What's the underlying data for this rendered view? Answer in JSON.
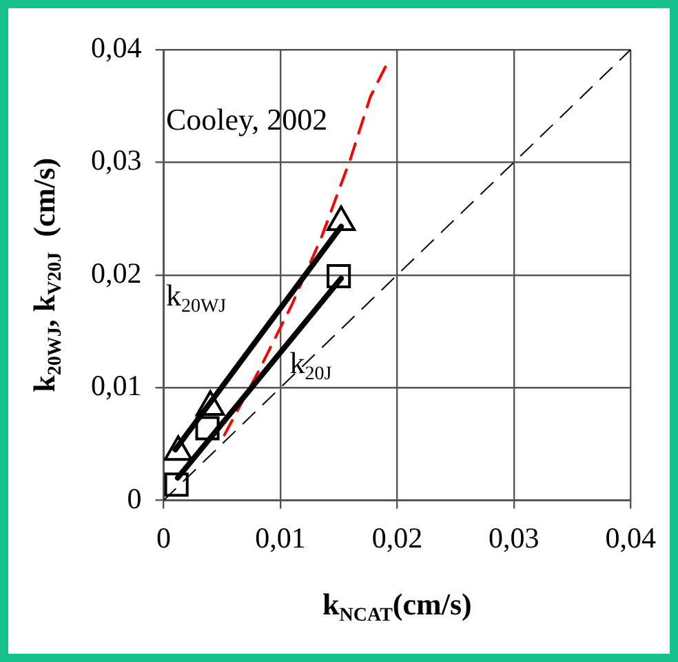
{
  "chart_data": {
    "type": "scatter",
    "xlabel": "k$_{NCAT}$(cm/s)",
    "ylabel": "k$_{20WJ}$, k$_{V20J}$  (cm/s)",
    "xlim": [
      0,
      0.04
    ],
    "ylim": [
      0,
      0.04
    ],
    "xticks": [
      0,
      {
        "value": 0.01,
        "label": "0,01"
      },
      {
        "value": 0.02,
        "label": "0,02"
      },
      {
        "value": 0.03,
        "label": "0,03"
      },
      {
        "value": 0.04,
        "label": "0,04"
      }
    ],
    "yticks": [
      0,
      {
        "value": 0.01,
        "label": "0,01"
      },
      {
        "value": 0.02,
        "label": "0,02"
      },
      {
        "value": 0.03,
        "label": "0,03"
      },
      {
        "value": 0.04,
        "label": "0,04"
      }
    ],
    "grid": true,
    "annotations": [
      "Cooley, 2002",
      "k$_{20WJ}$",
      "k$_{20J}$"
    ],
    "series": [
      {
        "type": "scatter",
        "marker": "triangle",
        "color": "#000000",
        "x": [
          0.00125,
          0.004,
          0.0152
        ],
        "values": [
          0.0043,
          0.0083,
          0.0247
        ]
      },
      {
        "type": "scatter",
        "marker": "square",
        "color": "#000000",
        "x": [
          0.0011,
          0.00375,
          0.015
        ],
        "values": [
          0.0014,
          0.0064,
          0.0199
        ]
      },
      {
        "type": "line",
        "line_style": "solid",
        "color": "#000000",
        "x": [
          0.001,
          0.0152
        ],
        "values": [
          0.0045,
          0.0243
        ]
      },
      {
        "type": "line",
        "line_style": "solid",
        "color": "#000000",
        "x": [
          0.0012,
          0.0152
        ],
        "values": [
          0.002,
          0.0197
        ]
      },
      {
        "type": "line",
        "line_style": "dashed",
        "color": "#ff0000",
        "x": [
          0.0052,
          0.0081,
          0.011,
          0.0135,
          0.016,
          0.0177,
          0.0192
        ],
        "values": [
          0.0058,
          0.0114,
          0.0174,
          0.0233,
          0.0303,
          0.0358,
          0.0389
        ]
      },
      {
        "type": "line",
        "line_style": "dashed",
        "color": "#000000",
        "x": [
          0,
          0.04
        ],
        "values": [
          0,
          0.04
        ]
      }
    ]
  }
}
